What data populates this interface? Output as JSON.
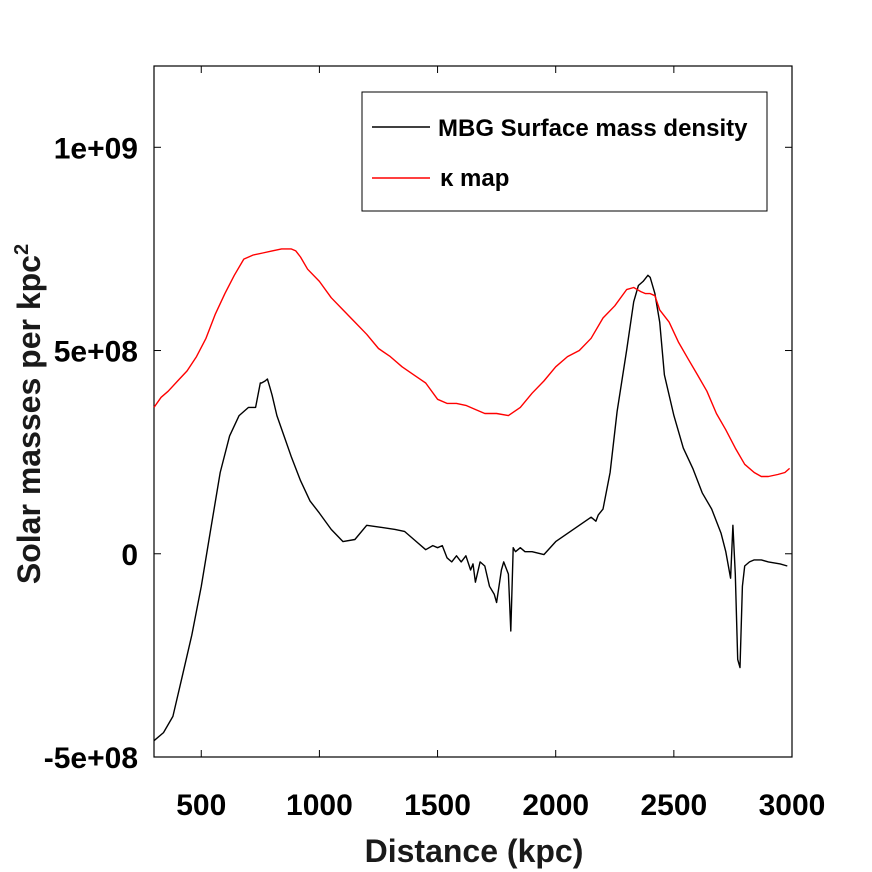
{
  "chart_data": {
    "type": "line",
    "title": "",
    "xlabel": "Distance (kpc)",
    "ylabel": "Solar masses per kpc",
    "ylabel_superscript": "2",
    "xlim": [
      300,
      3000
    ],
    "ylim": [
      -500000000,
      1200000000
    ],
    "grid": false,
    "legend_position": "top-right",
    "x_ticks": [
      {
        "value": 500,
        "label": "500"
      },
      {
        "value": 1000,
        "label": "1000"
      },
      {
        "value": 1500,
        "label": "1500"
      },
      {
        "value": 2000,
        "label": "2000"
      },
      {
        "value": 2500,
        "label": "2500"
      },
      {
        "value": 3000,
        "label": "3000"
      }
    ],
    "y_ticks": [
      {
        "value": -500000000,
        "label": "-5e+08"
      },
      {
        "value": 0,
        "label": "0"
      },
      {
        "value": 500000000,
        "label": "5e+08"
      },
      {
        "value": 1000000000,
        "label": "1e+09"
      }
    ],
    "series": [
      {
        "name": "MBG Surface mass density",
        "color": "#000000",
        "x": [
          300,
          340,
          380,
          420,
          460,
          500,
          540,
          580,
          620,
          660,
          700,
          730,
          750,
          755,
          770,
          780,
          790,
          800,
          820,
          850,
          880,
          920,
          960,
          1000,
          1050,
          1100,
          1150,
          1200,
          1260,
          1320,
          1360,
          1400,
          1450,
          1480,
          1500,
          1520,
          1540,
          1560,
          1580,
          1600,
          1620,
          1640,
          1650,
          1660,
          1680,
          1700,
          1720,
          1740,
          1750,
          1770,
          1780,
          1800,
          1810,
          1820,
          1830,
          1850,
          1870,
          1900,
          1950,
          2000,
          2050,
          2100,
          2150,
          2170,
          2180,
          2200,
          2230,
          2260,
          2300,
          2330,
          2350,
          2370,
          2390,
          2400,
          2420,
          2440,
          2460,
          2500,
          2540,
          2580,
          2620,
          2660,
          2700,
          2720,
          2740,
          2750,
          2760,
          2770,
          2780,
          2790,
          2800,
          2820,
          2840,
          2870,
          2900,
          2950,
          2980
        ],
        "y": [
          -460000000,
          -440000000,
          -400000000,
          -300000000,
          -200000000,
          -80000000,
          60000000,
          200000000,
          290000000,
          340000000,
          360000000,
          360000000,
          420000000,
          420000000,
          425000000,
          430000000,
          410000000,
          390000000,
          340000000,
          290000000,
          240000000,
          180000000,
          130000000,
          100000000,
          60000000,
          30000000,
          35000000,
          70000000,
          65000000,
          60000000,
          55000000,
          35000000,
          10000000,
          20000000,
          15000000,
          20000000,
          -10000000,
          -20000000,
          -5000000,
          -20000000,
          -5000000,
          -40000000,
          -25000000,
          -70000000,
          -20000000,
          -30000000,
          -80000000,
          -100000000,
          -120000000,
          -40000000,
          -20000000,
          -50000000,
          -190000000,
          15000000,
          5000000,
          15000000,
          5000000,
          5000000,
          -2000000,
          30000000,
          50000000,
          70000000,
          90000000,
          80000000,
          95000000,
          110000000,
          200000000,
          350000000,
          500000000,
          620000000,
          660000000,
          670000000,
          685000000,
          680000000,
          640000000,
          570000000,
          440000000,
          340000000,
          260000000,
          210000000,
          150000000,
          110000000,
          50000000,
          5000000,
          -60000000,
          70000000,
          -50000000,
          -260000000,
          -280000000,
          -80000000,
          -30000000,
          -20000000,
          -15000000,
          -15000000,
          -20000000,
          -25000000,
          -30000000
        ]
      },
      {
        "name": "κ map",
        "color": "#ff0000",
        "x": [
          300,
          330,
          360,
          400,
          440,
          480,
          520,
          560,
          600,
          640,
          680,
          720,
          760,
          800,
          840,
          880,
          900,
          920,
          950,
          1000,
          1050,
          1100,
          1150,
          1200,
          1250,
          1300,
          1350,
          1400,
          1450,
          1500,
          1540,
          1580,
          1620,
          1660,
          1700,
          1750,
          1800,
          1850,
          1900,
          1950,
          2000,
          2050,
          2100,
          2150,
          2200,
          2250,
          2300,
          2330,
          2360,
          2380,
          2400,
          2420,
          2440,
          2480,
          2520,
          2560,
          2600,
          2640,
          2680,
          2720,
          2760,
          2800,
          2840,
          2870,
          2900,
          2940,
          2970,
          2990
        ],
        "y": [
          360000000,
          385000000,
          400000000,
          425000000,
          450000000,
          485000000,
          530000000,
          590000000,
          640000000,
          685000000,
          725000000,
          735000000,
          740000000,
          745000000,
          750000000,
          750000000,
          745000000,
          730000000,
          700000000,
          670000000,
          630000000,
          600000000,
          570000000,
          540000000,
          505000000,
          485000000,
          460000000,
          440000000,
          420000000,
          380000000,
          370000000,
          370000000,
          365000000,
          355000000,
          345000000,
          345000000,
          340000000,
          360000000,
          395000000,
          425000000,
          460000000,
          485000000,
          500000000,
          530000000,
          580000000,
          610000000,
          650000000,
          655000000,
          645000000,
          640000000,
          640000000,
          635000000,
          600000000,
          570000000,
          520000000,
          480000000,
          440000000,
          400000000,
          345000000,
          305000000,
          260000000,
          220000000,
          200000000,
          190000000,
          190000000,
          195000000,
          200000000,
          210000000
        ]
      }
    ]
  }
}
